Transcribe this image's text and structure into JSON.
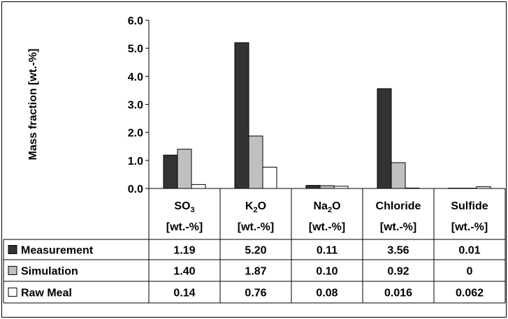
{
  "chart_data": {
    "type": "bar",
    "ylabel": "Mass fraction [wt.-%]",
    "ylim": [
      0,
      6
    ],
    "y_ticks": [
      "0.0",
      "1.0",
      "2.0",
      "3.0",
      "4.0",
      "5.0",
      "6.0"
    ],
    "grid": false,
    "legend": "table-rows",
    "categories": [
      {
        "main": "SO",
        "sub": "3",
        "after": "",
        "unit": "[wt.-%]"
      },
      {
        "main": "K",
        "sub": "2",
        "after": "O",
        "unit": "[wt.-%]"
      },
      {
        "main": "Na",
        "sub": "2",
        "after": "O",
        "unit": "[wt.-%]"
      },
      {
        "main": "Chloride",
        "sub": "",
        "after": "",
        "unit": "[wt.-%]"
      },
      {
        "main": "Sulfide",
        "sub": "",
        "after": "",
        "unit": "[wt.-%]"
      }
    ],
    "series": [
      {
        "name": "Measurement",
        "color": "#333333",
        "values": [
          1.19,
          5.2,
          0.11,
          3.56,
          0.01
        ],
        "labels": [
          "1.19",
          "5.20",
          "0.11",
          "3.56",
          "0.01"
        ]
      },
      {
        "name": "Simulation",
        "color": "#c0c0c0",
        "values": [
          1.4,
          1.87,
          0.1,
          0.92,
          0
        ],
        "labels": [
          "1.40",
          "1.87",
          "0.10",
          "0.92",
          "0"
        ]
      },
      {
        "name": "Raw Meal",
        "color": "#ffffff",
        "values": [
          0.14,
          0.76,
          0.08,
          0.016,
          0.062
        ],
        "labels": [
          "0.14",
          "0.76",
          "0.08",
          "0.016",
          "0.062"
        ]
      }
    ]
  }
}
